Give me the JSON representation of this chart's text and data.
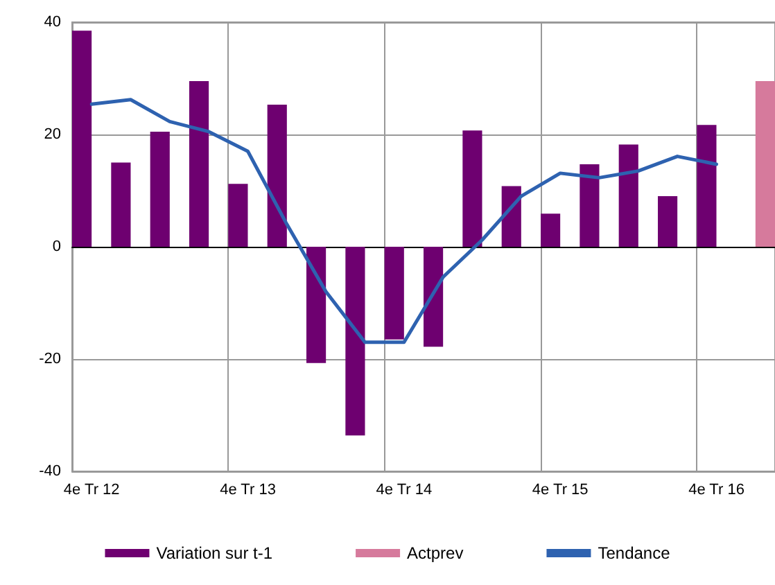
{
  "chart_data": {
    "type": "bar",
    "categories": [
      "4e Tr 12",
      null,
      null,
      null,
      "4e Tr 13",
      null,
      null,
      null,
      "4e Tr 14",
      null,
      null,
      null,
      "4e Tr 15",
      null,
      null,
      null,
      "4e Tr 16",
      null
    ],
    "series": [
      {
        "name": "Variation sur t-1",
        "color": "#6e0070",
        "values": [
          38.5,
          15,
          20.5,
          29.5,
          11.2,
          25.3,
          -20.7,
          -33.6,
          -16.5,
          -17.8,
          20.7,
          10.8,
          5.9,
          14.7,
          18.2,
          9,
          21.7,
          null
        ]
      },
      {
        "name": "Actprev",
        "color": "#d67a9c",
        "values": [
          null,
          null,
          null,
          null,
          null,
          null,
          null,
          null,
          null,
          null,
          null,
          null,
          null,
          null,
          null,
          null,
          null,
          29.5
        ]
      },
      {
        "name": "Tendance",
        "type": "line",
        "color": "#2e62b0",
        "values": [
          25.4,
          26.2,
          22.3,
          20.5,
          17,
          4,
          -8,
          -17,
          -17,
          -5.4,
          1.2,
          9,
          13.1,
          12.3,
          13.5,
          16.1,
          14.7,
          null
        ]
      }
    ],
    "ylim": [
      -40,
      40
    ],
    "yticks": [
      -40,
      -20,
      0,
      20,
      40
    ],
    "grid": true,
    "legend": "bottom",
    "marker": "none",
    "line_style": "solid"
  }
}
